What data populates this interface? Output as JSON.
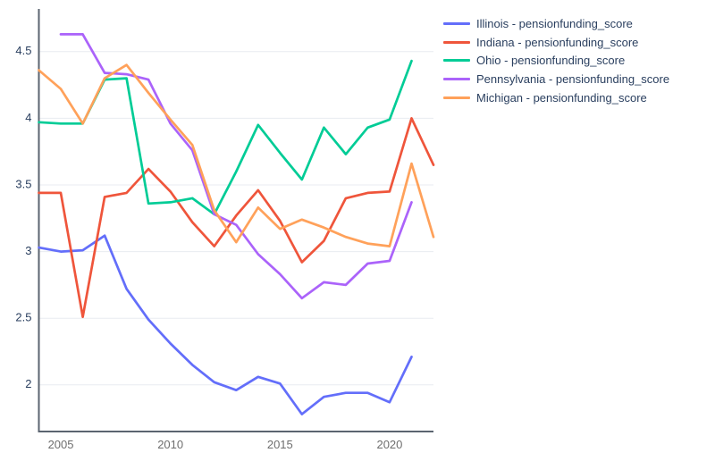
{
  "chart_data": {
    "type": "line",
    "title": "",
    "xlabel": "",
    "ylabel": "",
    "xlim": [
      2004,
      2022
    ],
    "ylim": [
      1.65,
      4.82
    ],
    "xticks": [
      2005,
      2010,
      2015,
      2020
    ],
    "yticks": [
      2,
      2.5,
      3,
      3.5,
      4,
      4.5
    ],
    "grid": "horizontal-only",
    "legend_position": "right-top",
    "series": [
      {
        "name": "Illinois",
        "label": "Illinois - pensionfunding_score",
        "color": "#636EFA",
        "years": [
          2004,
          2005,
          2006,
          2007,
          2008,
          2009,
          2010,
          2011,
          2012,
          2013,
          2014,
          2015,
          2016,
          2017,
          2018,
          2019,
          2020,
          2021
        ],
        "values": [
          3.03,
          3.0,
          3.01,
          3.12,
          2.72,
          2.49,
          2.31,
          2.15,
          2.02,
          1.96,
          2.06,
          2.01,
          1.78,
          1.91,
          1.94,
          1.94,
          1.87,
          2.21
        ]
      },
      {
        "name": "Indiana",
        "label": "Indiana - pensionfunding_score",
        "color": "#EF553B",
        "years": [
          2004,
          2005,
          2006,
          2007,
          2008,
          2009,
          2010,
          2011,
          2012,
          2013,
          2014,
          2015,
          2016,
          2017,
          2018,
          2019,
          2020,
          2021,
          2022
        ],
        "values": [
          3.44,
          3.44,
          2.51,
          3.41,
          3.44,
          3.62,
          3.45,
          3.22,
          3.04,
          3.27,
          3.46,
          3.23,
          2.92,
          3.08,
          3.4,
          3.44,
          3.45,
          4.0,
          3.65
        ]
      },
      {
        "name": "Ohio",
        "label": "Ohio - pensionfunding_score",
        "color": "#00CC96",
        "years": [
          2004,
          2005,
          2006,
          2007,
          2008,
          2009,
          2010,
          2011,
          2012,
          2013,
          2014,
          2015,
          2016,
          2017,
          2018,
          2019,
          2020,
          2021
        ],
        "values": [
          3.97,
          3.96,
          3.96,
          4.29,
          4.3,
          3.36,
          3.37,
          3.4,
          3.28,
          3.6,
          3.95,
          3.74,
          3.54,
          3.93,
          3.73,
          3.93,
          3.99,
          4.43
        ]
      },
      {
        "name": "Pennsylvania",
        "label": "Pennsylvania - pensionfunding_score",
        "color": "#AB63FA",
        "years": [
          2005,
          2006,
          2007,
          2008,
          2009,
          2010,
          2011,
          2012,
          2013,
          2014,
          2015,
          2016,
          2017,
          2018,
          2019,
          2020,
          2021
        ],
        "values": [
          4.63,
          4.63,
          4.34,
          4.33,
          4.29,
          3.96,
          3.76,
          3.28,
          3.2,
          2.98,
          2.83,
          2.65,
          2.77,
          2.75,
          2.91,
          2.93,
          3.37
        ]
      },
      {
        "name": "Michigan",
        "label": "Michigan - pensionfunding_score",
        "color": "#FFA15A",
        "years": [
          2004,
          2005,
          2006,
          2007,
          2008,
          2009,
          2010,
          2011,
          2012,
          2013,
          2014,
          2015,
          2016,
          2017,
          2018,
          2019,
          2020,
          2021,
          2022
        ],
        "values": [
          4.36,
          4.22,
          3.96,
          4.3,
          4.4,
          4.19,
          3.99,
          3.8,
          3.31,
          3.07,
          3.33,
          3.17,
          3.24,
          3.18,
          3.11,
          3.06,
          3.04,
          3.66,
          3.11
        ]
      }
    ]
  },
  "colors": {
    "grid": "#e8ebf0",
    "axis_line": "#5b6470",
    "y_tick_text": "#2a3f5f",
    "x_tick_text": "#6e6e6e"
  }
}
